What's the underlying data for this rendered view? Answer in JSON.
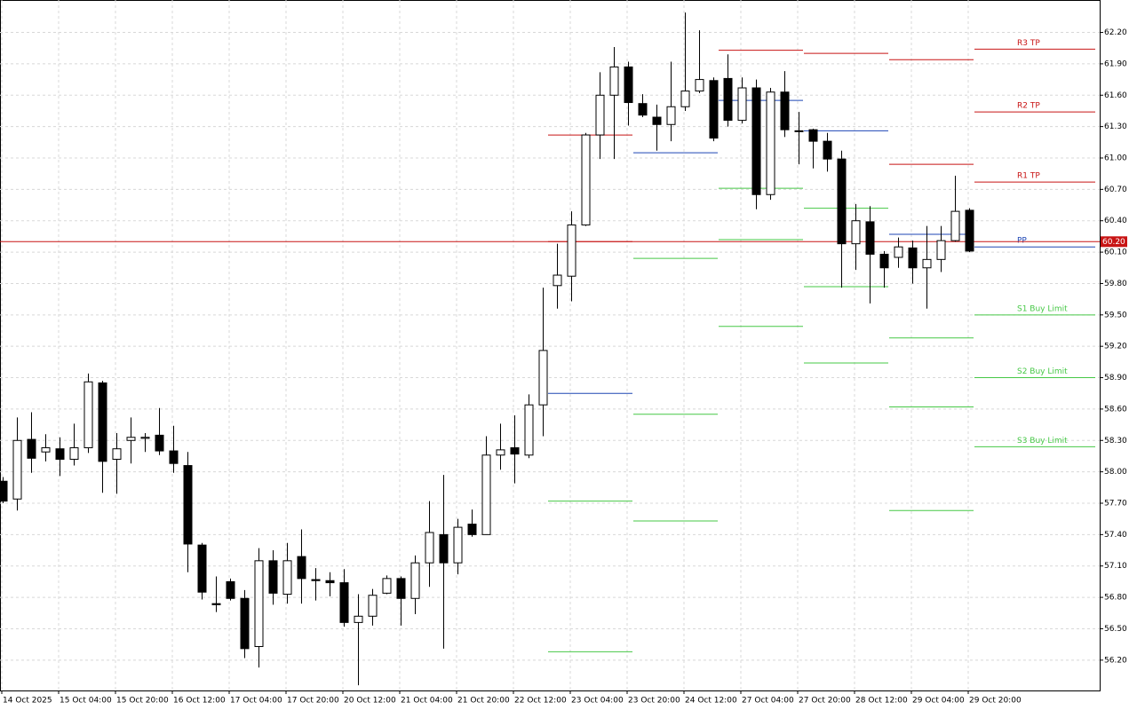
{
  "chart_data": {
    "type": "candlestick",
    "categories": [
      "14 Oct 2025",
      null,
      null,
      null,
      "15 Oct 04:00",
      null,
      null,
      null,
      "15 Oct 20:00",
      null,
      null,
      null,
      "16 Oct 12:00",
      null,
      null,
      null,
      "17 Oct 04:00",
      null,
      null,
      null,
      "17 Oct 20:00",
      null,
      null,
      null,
      "20 Oct 12:00",
      null,
      null,
      null,
      "21 Oct 04:00",
      null,
      null,
      null,
      "21 Oct 20:00",
      null,
      null,
      null,
      "22 Oct 12:00",
      null,
      null,
      null,
      "23 Oct 04:00",
      null,
      null,
      null,
      "23 Oct 20:00",
      null,
      null,
      null,
      "24 Oct 12:00",
      null,
      null,
      null,
      "27 Oct 04:00",
      null,
      null,
      null,
      "27 Oct 20:00",
      null,
      null,
      null,
      "28 Oct 12:00",
      null,
      null,
      null,
      "29 Oct 04:00",
      null,
      null,
      null,
      "29 Oct 20:00"
    ],
    "open": [
      57.91,
      57.74,
      58.31,
      58.19,
      58.22,
      58.12,
      58.23,
      58.85,
      58.12,
      58.3,
      58.32,
      58.35,
      58.2,
      58.06,
      57.3,
      56.74,
      56.95,
      56.79,
      56.33,
      57.15,
      56.83,
      57.19,
      56.97,
      56.96,
      56.94,
      56.56,
      56.62,
      56.84,
      56.98,
      56.79,
      57.13,
      57.4,
      57.13,
      57.5,
      57.4,
      58.16,
      58.23,
      58.16,
      58.64,
      59.78,
      59.87,
      60.36,
      61.22,
      61.6,
      61.87,
      61.52,
      61.39,
      61.32,
      61.49,
      61.64,
      61.74,
      61.76,
      61.36,
      61.67,
      60.65,
      61.63,
      61.26,
      61.27,
      61.16,
      60.99,
      60.18,
      60.39,
      60.08,
      60.05,
      60.14,
      59.95,
      60.03,
      60.21,
      60.5
    ],
    "high": [
      57.95,
      58.52,
      58.57,
      58.36,
      58.33,
      58.46,
      58.94,
      58.87,
      58.37,
      58.52,
      58.37,
      58.61,
      58.44,
      58.19,
      57.32,
      57.0,
      56.98,
      56.87,
      57.27,
      57.25,
      57.32,
      57.45,
      57.08,
      57.04,
      57.07,
      56.83,
      56.88,
      57.01,
      57.0,
      57.2,
      57.72,
      57.97,
      57.55,
      57.64,
      58.34,
      58.46,
      58.54,
      58.74,
      59.76,
      60.18,
      60.49,
      61.24,
      61.82,
      62.06,
      61.92,
      61.61,
      61.51,
      61.92,
      62.39,
      62.22,
      61.77,
      61.99,
      61.77,
      61.75,
      61.67,
      61.83,
      61.44,
      61.28,
      61.24,
      61.07,
      60.56,
      60.54,
      60.11,
      60.24,
      60.21,
      60.35,
      60.35,
      60.83,
      60.52
    ],
    "low": [
      57.7,
      57.63,
      57.99,
      58.1,
      57.96,
      58.06,
      58.18,
      57.8,
      57.79,
      58.08,
      58.19,
      58.16,
      57.99,
      57.04,
      56.78,
      56.66,
      56.77,
      56.22,
      56.13,
      56.73,
      56.74,
      56.74,
      56.77,
      56.81,
      56.52,
      55.96,
      56.53,
      56.83,
      56.53,
      56.64,
      56.9,
      56.31,
      57.02,
      57.38,
      57.4,
      58.02,
      57.89,
      58.13,
      58.34,
      59.56,
      59.63,
      60.35,
      60.99,
      60.99,
      61.31,
      61.39,
      61.07,
      61.16,
      61.45,
      61.62,
      61.16,
      61.3,
      61.33,
      60.51,
      60.6,
      61.2,
      60.94,
      60.9,
      60.87,
      59.76,
      59.93,
      59.61,
      59.76,
      59.95,
      59.8,
      59.56,
      59.91,
      60.2,
      60.1
    ],
    "close": [
      57.72,
      58.3,
      58.13,
      58.23,
      58.12,
      58.23,
      58.86,
      58.1,
      58.22,
      58.33,
      58.33,
      58.2,
      58.08,
      57.31,
      56.85,
      56.73,
      56.79,
      56.31,
      57.15,
      56.84,
      57.15,
      56.98,
      56.96,
      56.94,
      56.56,
      56.62,
      56.82,
      56.98,
      56.79,
      57.13,
      57.42,
      57.13,
      57.47,
      57.4,
      58.16,
      58.21,
      58.17,
      58.64,
      59.16,
      59.88,
      60.36,
      61.22,
      61.6,
      61.87,
      61.53,
      61.41,
      61.32,
      61.49,
      61.64,
      61.75,
      61.19,
      61.36,
      61.67,
      60.65,
      61.63,
      61.27,
      61.26,
      61.16,
      60.99,
      60.18,
      60.4,
      60.08,
      59.95,
      60.15,
      59.95,
      60.03,
      60.21,
      60.49,
      60.11
    ],
    "up_color": "#ffffff",
    "down_color": "#000000",
    "ylim": [
      55.91,
      62.51
    ],
    "yticks": [
      {
        "value": 62.2,
        "label": "62.20"
      },
      {
        "value": 61.9,
        "label": "61.90"
      },
      {
        "value": 61.6,
        "label": "61.60"
      },
      {
        "value": 61.3,
        "label": "61.30"
      },
      {
        "value": 61.0,
        "label": "61.00"
      },
      {
        "value": 60.7,
        "label": "60.70"
      },
      {
        "value": 60.4,
        "label": "60.40"
      },
      {
        "value": 60.1,
        "label": "60.10"
      },
      {
        "value": 59.8,
        "label": "59.80"
      },
      {
        "value": 59.5,
        "label": "59.50"
      },
      {
        "value": 59.2,
        "label": "59.20"
      },
      {
        "value": 58.9,
        "label": "58.90"
      },
      {
        "value": 58.6,
        "label": "58.60"
      },
      {
        "value": 58.3,
        "label": "58.30"
      },
      {
        "value": 58.0,
        "label": "58.00"
      },
      {
        "value": 57.7,
        "label": "57.70"
      },
      {
        "value": 57.4,
        "label": "57.40"
      },
      {
        "value": 57.1,
        "label": "57.10"
      },
      {
        "value": 56.8,
        "label": "56.80"
      },
      {
        "value": 56.5,
        "label": "56.50"
      },
      {
        "value": 56.2,
        "label": "56.20"
      }
    ],
    "grid": true,
    "current_price": {
      "value": 60.2,
      "label": "60.20",
      "color": "#c81414"
    },
    "pivots": [
      [
        {
          "value": 61.22,
          "color": "#c81414"
        },
        {
          "value": 60.2,
          "color": "#c81414"
        },
        {
          "value": 58.75,
          "color": "#1e46b4"
        },
        {
          "value": 57.72,
          "color": "#46c846"
        },
        {
          "value": 56.28,
          "color": "#46c846"
        }
      ],
      [
        {
          "value": 61.05,
          "color": "#1e46b4"
        },
        {
          "value": 60.04,
          "color": "#46c846"
        },
        {
          "value": 58.55,
          "color": "#46c846"
        },
        {
          "value": 57.53,
          "color": "#46c846"
        }
      ],
      [
        {
          "value": 62.03,
          "color": "#c81414"
        },
        {
          "value": 61.55,
          "color": "#1e46b4"
        },
        {
          "value": 60.71,
          "color": "#46c846"
        },
        {
          "value": 60.22,
          "color": "#46c846"
        },
        {
          "value": 59.39,
          "color": "#46c846"
        }
      ],
      [
        {
          "value": 62.0,
          "color": "#c81414"
        },
        {
          "value": 61.26,
          "color": "#1e46b4"
        },
        {
          "value": 60.52,
          "color": "#46c846"
        },
        {
          "value": 59.77,
          "color": "#46c846"
        },
        {
          "value": 59.04,
          "color": "#46c846"
        }
      ],
      [
        {
          "value": 61.94,
          "color": "#c81414"
        },
        {
          "value": 60.94,
          "color": "#c81414"
        },
        {
          "value": 60.27,
          "color": "#1e46b4"
        },
        {
          "value": 59.28,
          "color": "#46c846"
        },
        {
          "value": 58.62,
          "color": "#46c846"
        },
        {
          "value": 57.63,
          "color": "#46c846"
        }
      ],
      [
        {
          "value": 62.04,
          "color": "#c81414",
          "name": "R3 TP"
        },
        {
          "value": 61.44,
          "color": "#c81414",
          "name": "R2 TP"
        },
        {
          "value": 60.77,
          "color": "#c81414",
          "name": "R1 TP"
        },
        {
          "value": 60.15,
          "color": "#1e46b4",
          "name": "PP"
        },
        {
          "value": 59.5,
          "color": "#46c846",
          "name": "S1 Buy Limit"
        },
        {
          "value": 58.9,
          "color": "#46c846",
          "name": "S2 Buy Limit"
        },
        {
          "value": 58.24,
          "color": "#46c846",
          "name": "S3 Buy Limit"
        }
      ]
    ]
  }
}
